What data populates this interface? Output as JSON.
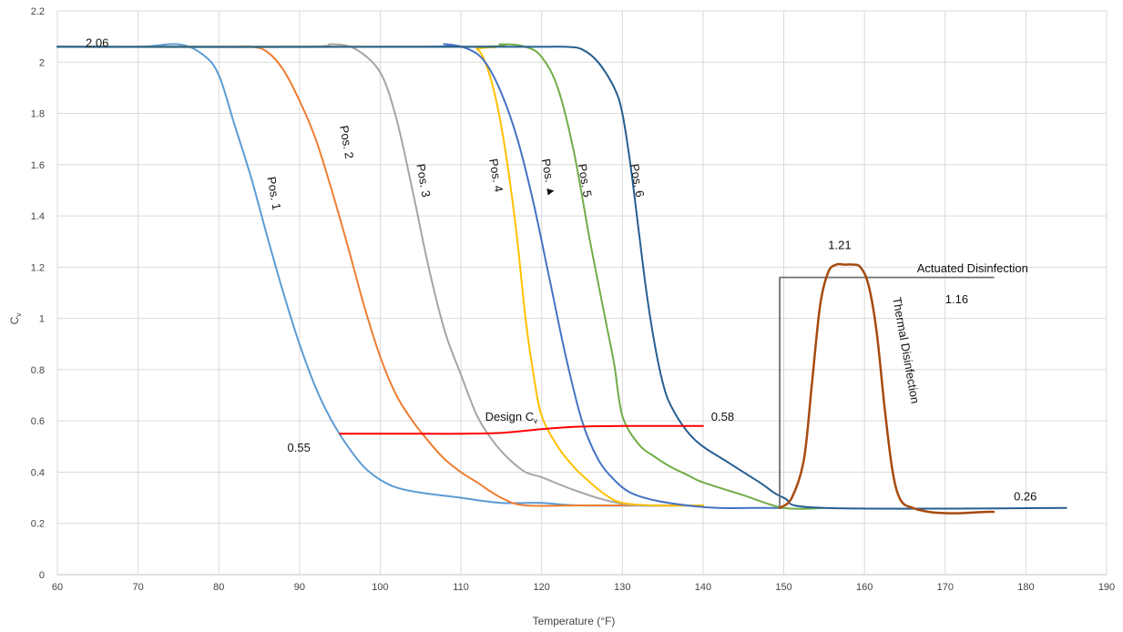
{
  "chart_data": {
    "type": "line",
    "title": "",
    "xlabel": "Temperature (°F)",
    "ylabel": "Cv",
    "xlim": [
      60,
      190
    ],
    "ylim": [
      0,
      2.2
    ],
    "x_ticks": [
      "60",
      "70",
      "80",
      "90",
      "100",
      "110",
      "120",
      "130",
      "140",
      "150",
      "160",
      "170",
      "180",
      "190"
    ],
    "y_ticks": [
      "0",
      "0.2",
      "0.4",
      "0.6",
      "0.8",
      "1",
      "1.2",
      "1.4",
      "1.6",
      "1.8",
      "2",
      "2.2"
    ],
    "grid": true,
    "series": [
      {
        "name": "Pos. 1",
        "color": "#5b9bd5",
        "x": [
          60,
          70,
          75,
          78,
          80,
          82,
          84,
          86,
          88,
          90,
          92,
          94,
          96,
          98,
          100,
          102,
          105,
          110,
          115,
          120,
          125,
          140
        ],
        "y": [
          2.06,
          2.06,
          2.07,
          2.03,
          1.95,
          1.75,
          1.55,
          1.32,
          1.1,
          0.9,
          0.73,
          0.6,
          0.5,
          0.42,
          0.37,
          0.34,
          0.32,
          0.3,
          0.28,
          0.28,
          0.27,
          0.27
        ]
      },
      {
        "name": "Pos. 2",
        "color": "#ed7d31",
        "x": [
          60,
          80,
          84,
          86,
          88,
          90,
          92,
          94,
          96,
          98,
          100,
          102,
          104,
          106,
          108,
          110,
          112,
          115,
          118,
          125,
          140
        ],
        "y": [
          2.06,
          2.06,
          2.06,
          2.04,
          1.97,
          1.85,
          1.7,
          1.5,
          1.28,
          1.05,
          0.85,
          0.7,
          0.6,
          0.52,
          0.45,
          0.4,
          0.36,
          0.3,
          0.27,
          0.27,
          0.27
        ]
      },
      {
        "name": "Pos. 3",
        "color": "#a5a5a5",
        "x": [
          60,
          90,
          94,
          97,
          100,
          102,
          104,
          106,
          108,
          110,
          112,
          114,
          116,
          118,
          120,
          124,
          128,
          132,
          140
        ],
        "y": [
          2.06,
          2.06,
          2.07,
          2.05,
          1.96,
          1.78,
          1.5,
          1.2,
          0.95,
          0.78,
          0.62,
          0.52,
          0.45,
          0.4,
          0.38,
          0.33,
          0.29,
          0.27,
          0.27
        ]
      },
      {
        "name": "Pos. 4",
        "color": "#ffc000",
        "x": [
          60,
          110,
          112,
          113,
          114,
          115,
          116,
          117,
          118,
          119,
          120,
          122,
          124,
          126,
          128,
          130,
          134,
          140
        ],
        "y": [
          2.06,
          2.06,
          2.05,
          2.0,
          1.9,
          1.75,
          1.55,
          1.3,
          1.0,
          0.78,
          0.62,
          0.5,
          0.42,
          0.36,
          0.31,
          0.28,
          0.27,
          0.27
        ]
      },
      {
        "name": "Pos. 4",
        "color": "#4472c4",
        "x": [
          60,
          105,
          108,
          111,
          113,
          115,
          117,
          119,
          121,
          123,
          125,
          127,
          129,
          131,
          134,
          138,
          142,
          146,
          150
        ],
        "y": [
          2.06,
          2.06,
          2.07,
          2.05,
          2.0,
          1.88,
          1.7,
          1.45,
          1.15,
          0.85,
          0.6,
          0.45,
          0.37,
          0.32,
          0.29,
          0.27,
          0.26,
          0.26,
          0.26
        ]
      },
      {
        "name": "Pos. 5",
        "color": "#70ad47",
        "x": [
          60,
          110,
          115,
          118,
          120,
          122,
          124,
          126,
          128,
          129,
          130,
          132,
          134,
          136,
          138,
          140,
          145,
          150,
          155
        ],
        "y": [
          2.06,
          2.06,
          2.07,
          2.06,
          2.02,
          1.9,
          1.65,
          1.3,
          0.98,
          0.82,
          0.62,
          0.51,
          0.46,
          0.42,
          0.39,
          0.36,
          0.31,
          0.26,
          0.26
        ]
      },
      {
        "name": "Pos. 6",
        "color": "#255e91",
        "x": [
          60,
          110,
          120,
          123,
          125,
          127,
          129,
          130,
          131,
          132,
          133,
          134,
          135,
          136,
          138,
          140,
          143,
          147,
          150,
          155,
          185
        ],
        "y": [
          2.06,
          2.06,
          2.06,
          2.06,
          2.05,
          2.0,
          1.9,
          1.8,
          1.6,
          1.35,
          1.1,
          0.9,
          0.75,
          0.66,
          0.56,
          0.5,
          0.44,
          0.36,
          0.3,
          0.26,
          0.26
        ]
      },
      {
        "name": "Design Cv",
        "color": "#ff0000",
        "x": [
          95,
          105,
          110,
          115,
          120,
          125,
          130,
          135,
          140
        ],
        "y": [
          0.55,
          0.55,
          0.55,
          0.553,
          0.568,
          0.578,
          0.58,
          0.58,
          0.58
        ]
      },
      {
        "name": "Actuated Disinfection",
        "color": "#707070",
        "x": [
          149.5,
          149.5,
          150,
          176
        ],
        "y": [
          0.26,
          1.16,
          1.16,
          1.16
        ]
      },
      {
        "name": "Thermal Disinfection",
        "color": "#a64a0e",
        "x": [
          149.5,
          151,
          152.5,
          153.5,
          154.5,
          155.5,
          156.5,
          157.5,
          158.5,
          159.5,
          160.5,
          161.5,
          162.5,
          163.5,
          164.5,
          166,
          168,
          170,
          172,
          175,
          176
        ],
        "y": [
          0.26,
          0.3,
          0.45,
          0.75,
          1.05,
          1.18,
          1.21,
          1.21,
          1.21,
          1.2,
          1.13,
          0.95,
          0.65,
          0.4,
          0.29,
          0.26,
          0.245,
          0.24,
          0.24,
          0.245,
          0.245
        ]
      }
    ],
    "annotations": [
      {
        "text": "2.06",
        "x": 63.5,
        "y": 2.06
      },
      {
        "text": "Pos. 1",
        "x": 86,
        "y": 1.55,
        "rotate": true
      },
      {
        "text": "Pos. 2",
        "x": 95,
        "y": 1.75,
        "rotate": true
      },
      {
        "text": "Pos. 3",
        "x": 104.5,
        "y": 1.6,
        "rotate": true
      },
      {
        "text": "Pos. 4",
        "x": 113.5,
        "y": 1.62,
        "rotate": true
      },
      {
        "text": "Pos. ▲",
        "x": 120,
        "y": 1.62,
        "rotate": true
      },
      {
        "text": "Pos. 5",
        "x": 124.5,
        "y": 1.6,
        "rotate": true
      },
      {
        "text": "Pos. 6",
        "x": 131,
        "y": 1.6,
        "rotate": true
      },
      {
        "text": "Design C",
        "x": 113,
        "y": 0.6
      },
      {
        "text": "0.55",
        "x": 88.5,
        "y": 0.48
      },
      {
        "text": "0.58",
        "x": 141,
        "y": 0.6
      },
      {
        "text": "1.21",
        "x": 155.5,
        "y": 1.27
      },
      {
        "text": "Actuated Disinfection",
        "x": 166.5,
        "y": 1.18
      },
      {
        "text": "1.16",
        "x": 170,
        "y": 1.06
      },
      {
        "text": "Thermal Disinfection",
        "x": 163.5,
        "y": 1.08,
        "rotate": true
      },
      {
        "text": "0.26",
        "x": 178.5,
        "y": 0.29
      }
    ]
  }
}
